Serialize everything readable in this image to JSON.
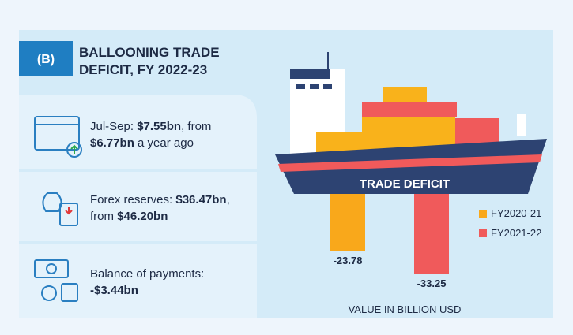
{
  "header": {
    "title_lines": [
      "BALLOONING TRADE",
      "DEFICIT, FY 2022-23"
    ]
  },
  "items": [
    {
      "lines": [
        [
          {
            "text": "Jul-Sep: "
          },
          {
            "text": "$7.55bn",
            "bold": true
          },
          {
            "text": ", from"
          }
        ],
        [
          {
            "text": "$6.77bn",
            "bold": true
          },
          {
            "text": " a year ago"
          }
        ]
      ]
    },
    {
      "lines": [
        [
          {
            "text": "Forex reserves: "
          },
          {
            "text": "$36.47bn",
            "bold": true
          },
          {
            "text": ","
          }
        ],
        [
          {
            "text": "from "
          },
          {
            "text": "$46.20bn",
            "bold": true
          }
        ]
      ]
    },
    {
      "lines": [
        [
          {
            "text": "Balance of payments:"
          }
        ],
        [
          {
            "text": "-$3.44bn",
            "bold": true
          }
        ]
      ]
    }
  ],
  "chart_data": {
    "type": "bar",
    "annotation": "TRADE DEFICIT",
    "y_label": "VALUE IN BILLION USD",
    "categories": [
      "FY2020-21",
      "FY2021-22"
    ],
    "values": [
      -23.78,
      -33.25
    ],
    "colors": [
      "#f9a81b",
      "#f05a5b"
    ],
    "ylim": [
      -35,
      0
    ],
    "legend": "right"
  }
}
